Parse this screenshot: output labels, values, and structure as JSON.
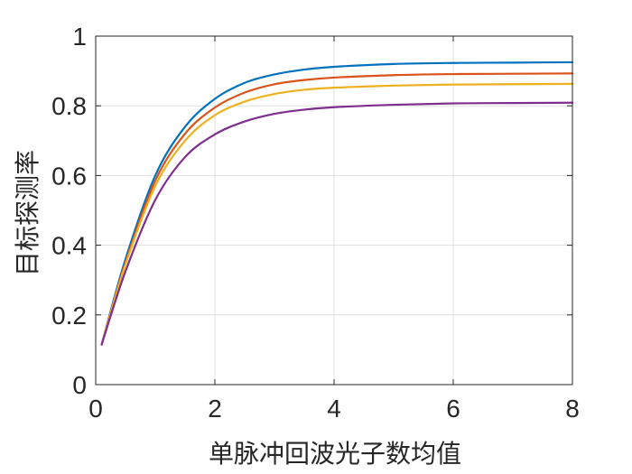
{
  "chart_data": {
    "type": "line",
    "title": "",
    "xlabel": "单脉冲回波光子数均值",
    "ylabel": "目标探测率",
    "xlim": [
      0,
      8
    ],
    "ylim": [
      0,
      1
    ],
    "xticks": [
      0,
      2,
      4,
      6,
      8
    ],
    "xtick_labels": [
      "0",
      "2",
      "4",
      "6",
      "8"
    ],
    "yticks": [
      0,
      0.2,
      0.4,
      0.6,
      0.8,
      1
    ],
    "ytick_labels": [
      "0",
      "0.2",
      "0.4",
      "0.6",
      "0.8",
      "1"
    ],
    "grid": true,
    "legend": "none",
    "x": [
      0.1,
      0.5,
      1,
      1.5,
      2,
      2.5,
      3,
      3.5,
      4,
      5,
      6,
      7,
      8
    ],
    "series": [
      {
        "color": "#0072BD",
        "values": [
          0.115,
          0.36,
          0.6,
          0.74,
          0.82,
          0.866,
          0.89,
          0.904,
          0.912,
          0.92,
          0.923,
          0.924,
          0.925
        ]
      },
      {
        "color": "#D95319",
        "values": [
          0.115,
          0.35,
          0.585,
          0.72,
          0.795,
          0.838,
          0.862,
          0.874,
          0.881,
          0.888,
          0.891,
          0.892,
          0.893
        ]
      },
      {
        "color": "#EDB120",
        "values": [
          0.115,
          0.345,
          0.57,
          0.7,
          0.773,
          0.812,
          0.834,
          0.846,
          0.852,
          0.858,
          0.861,
          0.862,
          0.863
        ]
      },
      {
        "color": "#7E2F8E",
        "values": [
          0.115,
          0.325,
          0.53,
          0.653,
          0.718,
          0.755,
          0.777,
          0.789,
          0.796,
          0.803,
          0.807,
          0.808,
          0.809
        ]
      }
    ]
  }
}
